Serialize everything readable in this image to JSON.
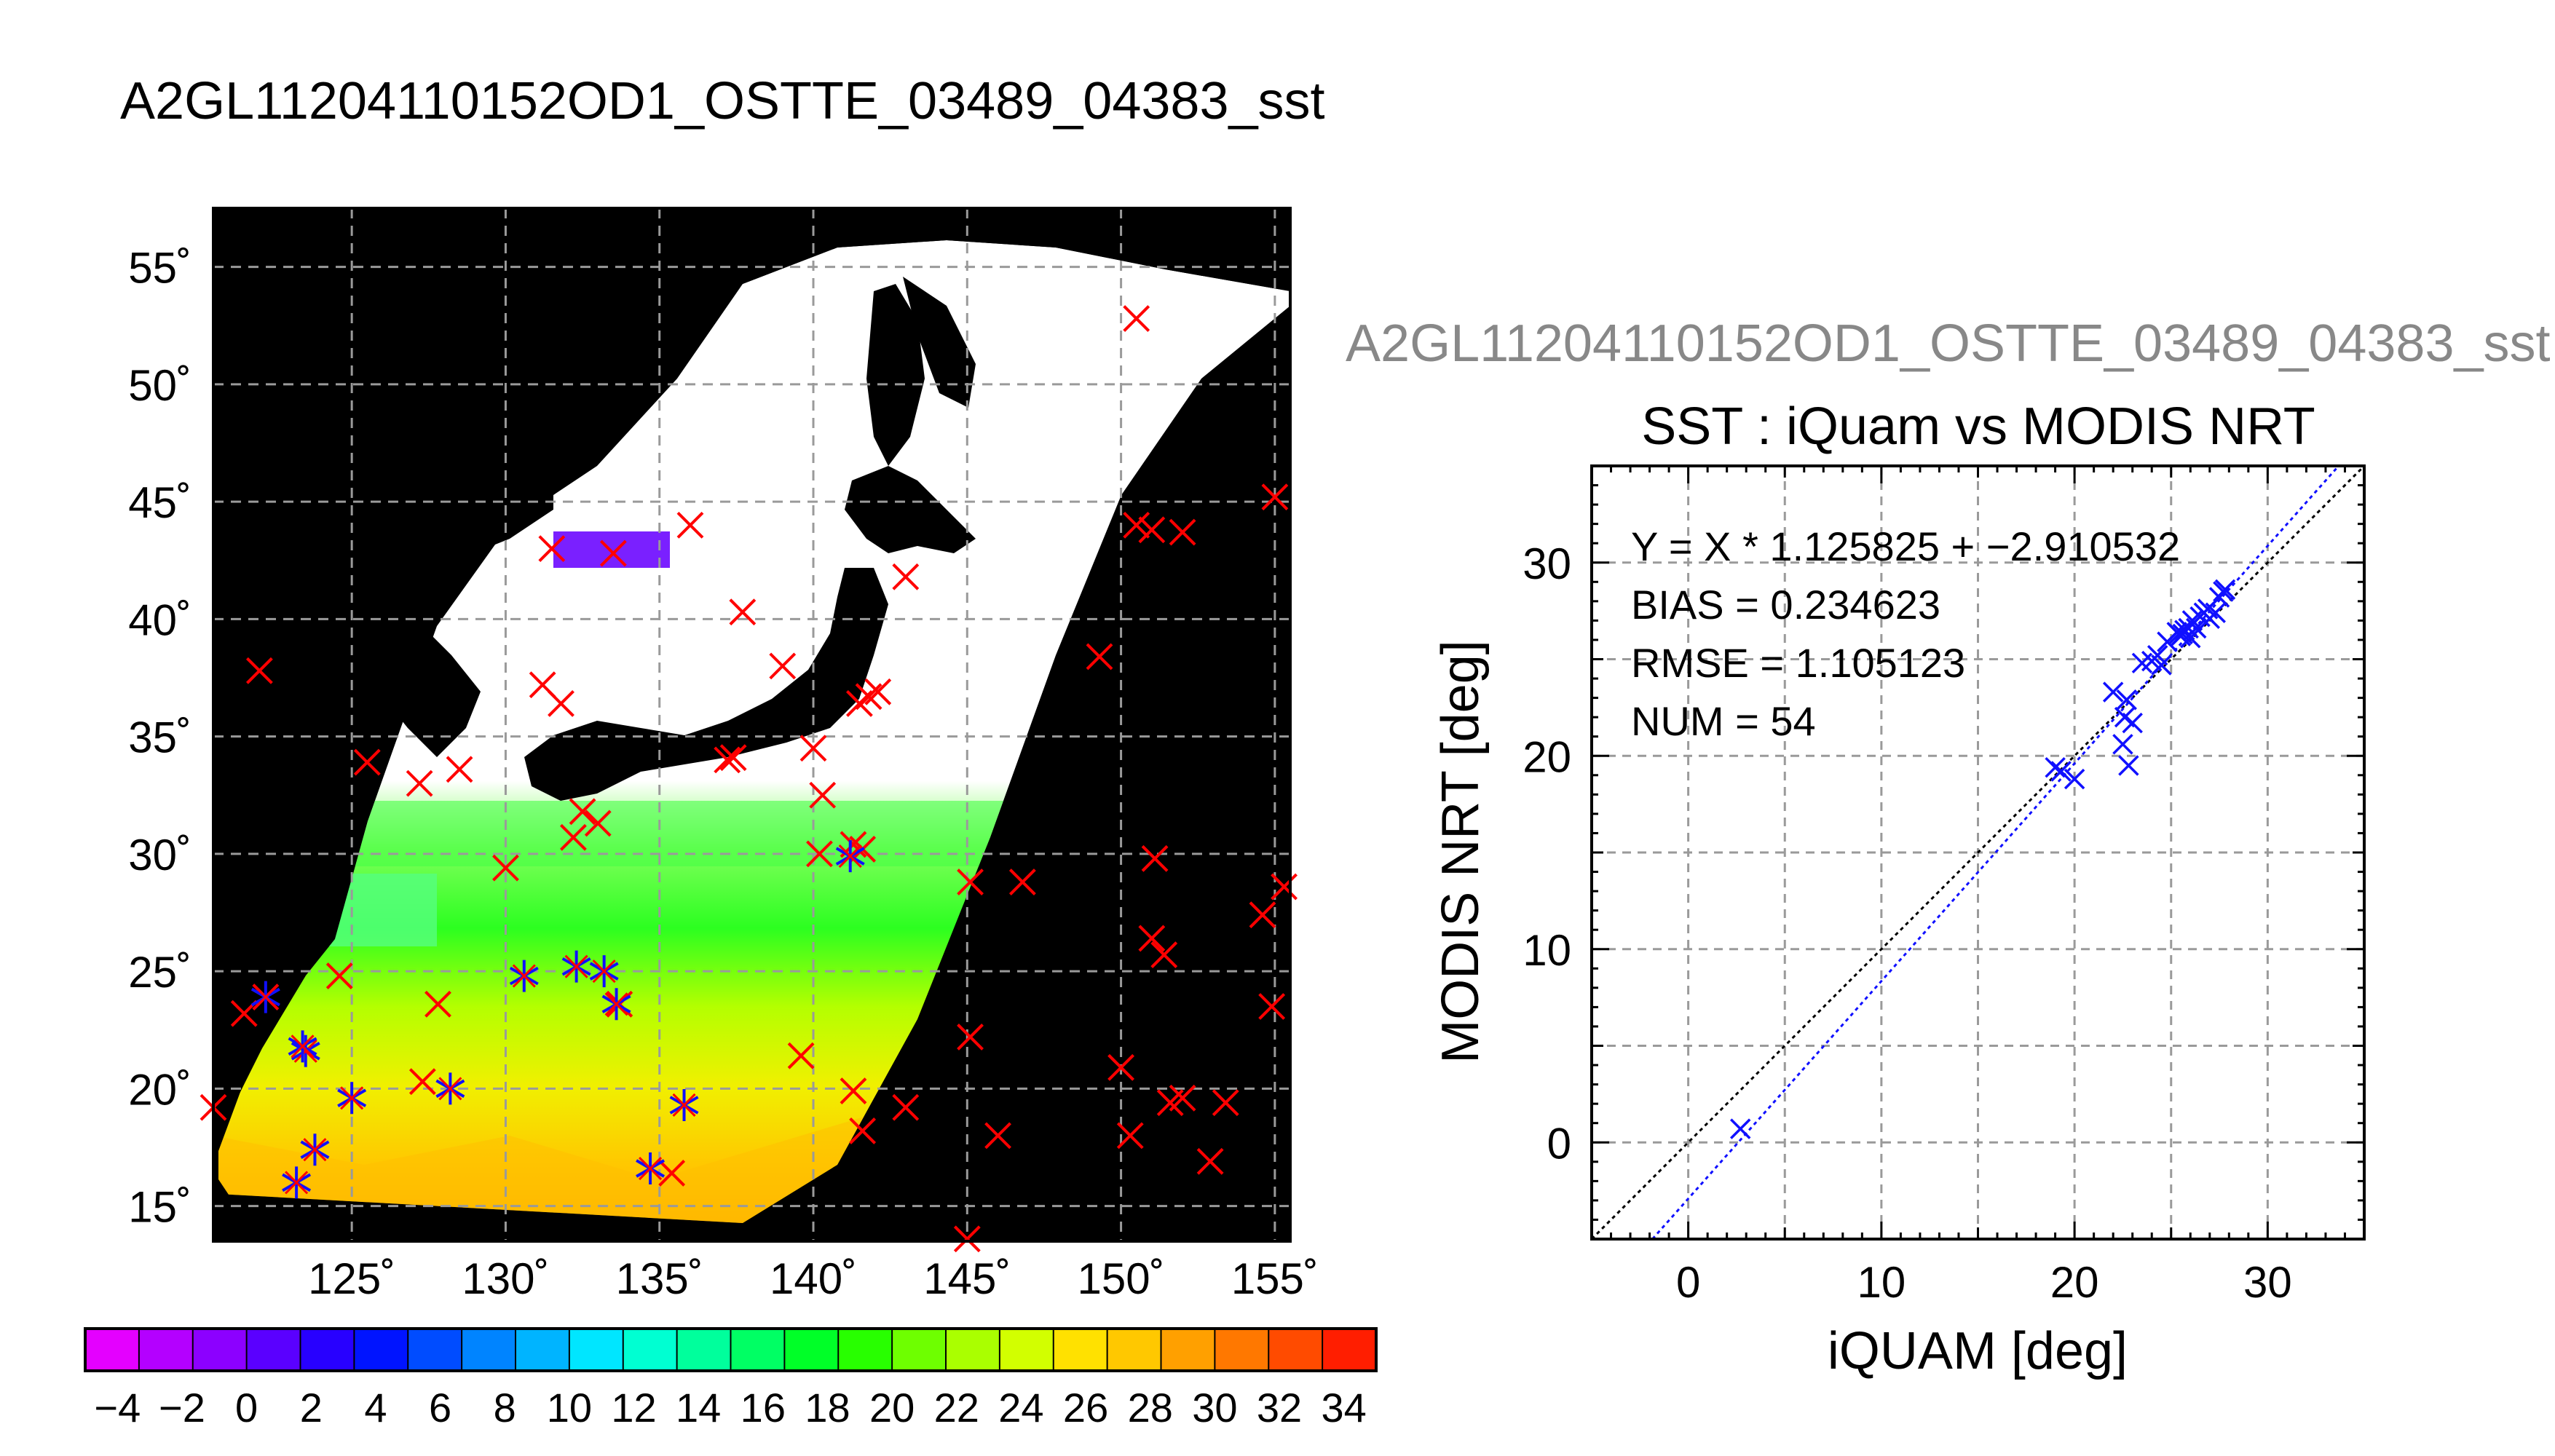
{
  "page_title": "A2GL11204110152OD1_OSTTE_03489_04383_sst",
  "chart_data": [
    {
      "type": "map",
      "lat_ticks": [
        "15˚",
        "20˚",
        "25˚",
        "30˚",
        "35˚",
        "40˚",
        "45˚",
        "50˚",
        "55˚"
      ],
      "lon_ticks": [
        "125˚",
        "130˚",
        "135˚",
        "140˚",
        "145˚",
        "150˚",
        "155˚"
      ],
      "lon_range": [
        120.5,
        155.5
      ],
      "lat_range": [
        13.5,
        57.5
      ],
      "grid": true,
      "colorbar": {
        "tick_labels": [
          "−4",
          "−2",
          "0",
          "2",
          "4",
          "6",
          "8",
          "10",
          "12",
          "14",
          "16",
          "18",
          "20",
          "22",
          "24",
          "26",
          "28",
          "30",
          "32",
          "34"
        ],
        "range": [
          -5,
          35
        ],
        "colors": [
          "#e400ff",
          "#b400ff",
          "#8c00ff",
          "#5a00ff",
          "#2800ff",
          "#0014ff",
          "#004cff",
          "#0084ff",
          "#00b4ff",
          "#00e6ff",
          "#00ffd2",
          "#00ff9c",
          "#00ff64",
          "#00ff28",
          "#28ff00",
          "#6eff00",
          "#aaff00",
          "#d2ff00",
          "#ffe100",
          "#ffc800",
          "#ffa000",
          "#ff7800",
          "#ff4b00",
          "#ff1e00"
        ]
      },
      "buoy_points_red_x": [
        [
          150.5,
          52.8
        ],
        [
          155,
          45.2
        ],
        [
          150.5,
          44
        ],
        [
          151,
          43.8
        ],
        [
          152,
          43.7
        ],
        [
          131.5,
          43
        ],
        [
          133.5,
          42.8
        ],
        [
          136,
          44
        ],
        [
          143,
          41.8
        ],
        [
          137.7,
          40.3
        ],
        [
          139,
          38
        ],
        [
          149.3,
          38.4
        ],
        [
          131.2,
          37.2
        ],
        [
          131.8,
          36.4
        ],
        [
          141.5,
          36.4
        ],
        [
          141.8,
          36.7
        ],
        [
          142.1,
          36.9
        ],
        [
          137.2,
          34
        ],
        [
          137.4,
          34.1
        ],
        [
          140,
          34.5
        ],
        [
          140.3,
          32.5
        ],
        [
          122,
          37.8
        ],
        [
          125.5,
          33.9
        ],
        [
          127.2,
          33
        ],
        [
          128.5,
          33.6
        ],
        [
          132.5,
          31.8
        ],
        [
          132.2,
          30.7
        ],
        [
          133,
          31.3
        ],
        [
          130,
          29.4
        ],
        [
          140.2,
          30
        ],
        [
          141.3,
          30.4
        ],
        [
          141.6,
          30.2
        ],
        [
          151.1,
          29.8
        ],
        [
          145.1,
          28.8
        ],
        [
          146.8,
          28.8
        ],
        [
          155.3,
          28.6
        ],
        [
          154.6,
          27.4
        ],
        [
          151,
          26.4
        ],
        [
          151.4,
          25.7
        ],
        [
          124.6,
          24.8
        ],
        [
          122.2,
          23.9
        ],
        [
          121.5,
          23.2
        ],
        [
          127.8,
          23.6
        ],
        [
          133.7,
          23.6
        ],
        [
          145.1,
          22.2
        ],
        [
          154.9,
          23.5
        ],
        [
          139.6,
          21.4
        ],
        [
          127.3,
          20.3
        ],
        [
          141.3,
          19.9
        ],
        [
          141.6,
          18.2
        ],
        [
          143,
          19.2
        ],
        [
          146,
          18
        ],
        [
          150,
          20.9
        ],
        [
          150.3,
          18
        ],
        [
          151.6,
          19.4
        ],
        [
          152,
          19.6
        ],
        [
          153.4,
          19.4
        ],
        [
          152.9,
          16.9
        ],
        [
          120.5,
          19.2
        ],
        [
          145,
          13.6
        ],
        [
          135.4,
          16.4
        ]
      ],
      "matchup_points_blue_star": [
        [
          122.2,
          23.9
        ],
        [
          123.5,
          21.6
        ],
        [
          123.4,
          21.8
        ],
        [
          125,
          19.6
        ],
        [
          128.2,
          20
        ],
        [
          123.8,
          17.4
        ],
        [
          123.2,
          16
        ],
        [
          130.6,
          24.8
        ],
        [
          132.3,
          25.2
        ],
        [
          133.6,
          23.6
        ],
        [
          133.2,
          25
        ],
        [
          135.8,
          19.3
        ],
        [
          134.7,
          16.6
        ],
        [
          141.2,
          29.9
        ]
      ]
    },
    {
      "type": "scatter",
      "title_top": "A2GL11204110152OD1_OSTTE_03489_04383_sst",
      "title": "SST : iQuam vs MODIS NRT",
      "xlabel": "iQUAM [deg]",
      "ylabel": "MODIS NRT [deg]",
      "xlim": [
        -5,
        35
      ],
      "ylim": [
        -5,
        35
      ],
      "x_ticks": [
        "0",
        "10",
        "20",
        "30"
      ],
      "y_ticks": [
        "0",
        "10",
        "20",
        "30"
      ],
      "grid": true,
      "annotations": [
        "Y = X * 1.125825 + −2.910532",
        "BIAS = 0.234623",
        "RMSE = 1.105123",
        "NUM = 54"
      ],
      "fit": {
        "slope": 1.125825,
        "intercept": -2.910532
      },
      "x": [
        2.7,
        19,
        19.3,
        20,
        22,
        22.5,
        22.6,
        23,
        22.7,
        22.8,
        23.5,
        24,
        24.3,
        24.5,
        24.8,
        25.3,
        25.5,
        25.7,
        26,
        25.6,
        26.3,
        26.5,
        26.7,
        27,
        27.3,
        27.5,
        27.7,
        27.8,
        26.9,
        25.9,
        26.1,
        25.4
      ],
      "y": [
        0.7,
        19.4,
        19.2,
        18.8,
        23.3,
        20.6,
        22,
        21.7,
        22.9,
        19.5,
        24.8,
        24.9,
        25.2,
        24.7,
        25.9,
        26.4,
        26.2,
        26.5,
        26.1,
        26.3,
        26.6,
        27.2,
        27.4,
        27.1,
        27.4,
        28.2,
        28.5,
        28.6,
        27.6,
        26.6,
        27,
        26.3
      ]
    }
  ]
}
